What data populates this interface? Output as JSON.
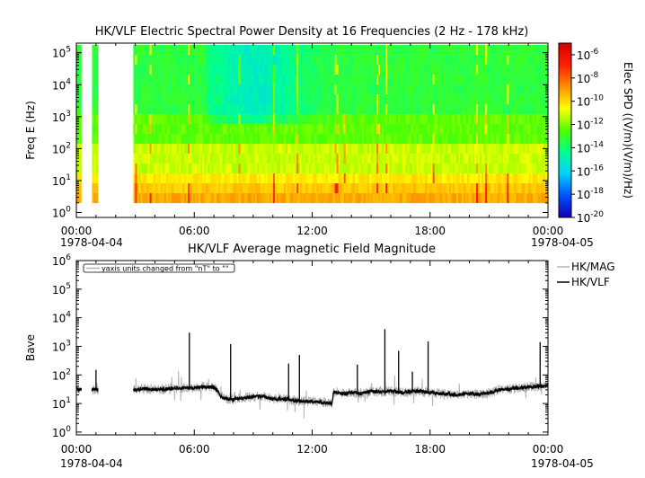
{
  "chart_data": [
    {
      "type": "heatmap",
      "title": "HK/VLF  Electric Spectral Power Density at 16 Frequencies (2 Hz - 178 kHz)",
      "ylabel": "Freq E (Hz)",
      "y_scale": "log",
      "ylim": [
        0.7,
        200000
      ],
      "y_ticks": [
        {
          "base": "10",
          "exp": "0"
        },
        {
          "base": "10",
          "exp": "1"
        },
        {
          "base": "10",
          "exp": "2"
        },
        {
          "base": "10",
          "exp": "3"
        },
        {
          "base": "10",
          "exp": "4"
        },
        {
          "base": "10",
          "exp": "5"
        }
      ],
      "x_ticks": [
        "00:00",
        "06:00",
        "12:00",
        "18:00",
        "00:00"
      ],
      "x_dates": {
        "start": "1978-04-04",
        "end": "1978-04-05"
      },
      "xlim_hours": [
        0,
        24
      ],
      "data_intervals_hours": [
        [
          0.0,
          0.25
        ],
        [
          0.8,
          1.1
        ],
        [
          2.9,
          24.0
        ]
      ],
      "frequency_range_hz": [
        2,
        178000
      ],
      "colorbar": {
        "label": "Elec SPD ((V/m)(V/m)/Hz)",
        "scale": "log",
        "range": [
          1e-20,
          1e-05
        ],
        "ticks": [
          {
            "base": "10",
            "exp": "-6"
          },
          {
            "base": "10",
            "exp": "-8"
          },
          {
            "base": "10",
            "exp": "-10"
          },
          {
            "base": "10",
            "exp": "-12"
          },
          {
            "base": "10",
            "exp": "-14"
          },
          {
            "base": "10",
            "exp": "-16"
          },
          {
            "base": "10",
            "exp": "-18"
          },
          {
            "base": "10",
            "exp": "-20"
          }
        ],
        "colors": [
          "#1200b0",
          "#0050ff",
          "#00d0ff",
          "#00ff90",
          "#50ff00",
          "#ffff00",
          "#ff9000",
          "#ff2000",
          "#d00000"
        ]
      }
    },
    {
      "type": "line",
      "title": "HK/VLF  Average magnetic Field Magnitude",
      "ylabel": "Bave",
      "y_scale": "log",
      "ylim": [
        0.8,
        1000000
      ],
      "y_ticks": [
        {
          "base": "10",
          "exp": "0"
        },
        {
          "base": "10",
          "exp": "1"
        },
        {
          "base": "10",
          "exp": "2"
        },
        {
          "base": "10",
          "exp": "3"
        },
        {
          "base": "10",
          "exp": "4"
        },
        {
          "base": "10",
          "exp": "5"
        },
        {
          "base": "10",
          "exp": "6"
        }
      ],
      "x_ticks": [
        "00:00",
        "06:00",
        "12:00",
        "18:00",
        "00:00"
      ],
      "x_dates": {
        "start": "1978-04-04",
        "end": "1978-04-05"
      },
      "xlim_hours": [
        0,
        24
      ],
      "annotation": "yaxis units changed from \"nT\" to \"\"",
      "legend_position": "right",
      "series": [
        {
          "name": "HK/MAG",
          "color": "#b4b4b4",
          "points": [
            [
              0.0,
              32
            ],
            [
              0.2,
              31
            ],
            [
              0.8,
              30
            ],
            [
              1.0,
              32
            ],
            [
              1.1,
              30
            ],
            [
              2.9,
              31
            ],
            [
              3.5,
              33
            ],
            [
              4.0,
              31
            ],
            [
              4.5,
              32
            ],
            [
              5.0,
              34
            ],
            [
              5.5,
              35
            ],
            [
              6.0,
              36
            ],
            [
              6.5,
              38
            ],
            [
              6.9,
              37
            ],
            [
              7.1,
              33
            ],
            [
              7.3,
              20
            ],
            [
              7.5,
              15
            ],
            [
              8.0,
              14
            ],
            [
              8.5,
              16
            ],
            [
              9.0,
              17
            ],
            [
              9.5,
              18
            ],
            [
              10.0,
              14
            ],
            [
              10.5,
              15
            ],
            [
              11.0,
              13
            ],
            [
              11.5,
              12
            ],
            [
              12.0,
              12
            ],
            [
              12.5,
              11
            ],
            [
              13.0,
              10
            ],
            [
              13.1,
              26
            ],
            [
              13.5,
              22
            ],
            [
              14.0,
              24
            ],
            [
              14.5,
              22
            ],
            [
              15.0,
              27
            ],
            [
              15.5,
              25
            ],
            [
              16.0,
              28
            ],
            [
              16.5,
              24
            ],
            [
              17.0,
              26
            ],
            [
              17.5,
              28
            ],
            [
              18.0,
              24
            ],
            [
              18.5,
              22
            ],
            [
              19.0,
              21
            ],
            [
              19.5,
              20
            ],
            [
              20.0,
              22
            ],
            [
              20.5,
              21
            ],
            [
              21.0,
              23
            ],
            [
              21.5,
              30
            ],
            [
              22.0,
              32
            ],
            [
              22.5,
              35
            ],
            [
              23.0,
              37
            ],
            [
              23.5,
              40
            ],
            [
              24.0,
              42
            ]
          ]
        },
        {
          "name": "HK/VLF",
          "color": "#000000",
          "points": [
            [
              0.0,
              32
            ],
            [
              0.2,
              31
            ],
            [
              0.8,
              30
            ],
            [
              1.0,
              32
            ],
            [
              1.1,
              30
            ],
            [
              2.9,
              31
            ],
            [
              3.5,
              33
            ],
            [
              4.0,
              31
            ],
            [
              4.5,
              32
            ],
            [
              5.0,
              34
            ],
            [
              5.5,
              35
            ],
            [
              6.0,
              36
            ],
            [
              6.5,
              38
            ],
            [
              6.9,
              37
            ],
            [
              7.1,
              33
            ],
            [
              7.3,
              20
            ],
            [
              7.5,
              15
            ],
            [
              8.0,
              14
            ],
            [
              8.5,
              16
            ],
            [
              9.0,
              17
            ],
            [
              9.5,
              18
            ],
            [
              10.0,
              14
            ],
            [
              10.5,
              15
            ],
            [
              11.0,
              13
            ],
            [
              11.5,
              12
            ],
            [
              12.0,
              12
            ],
            [
              12.5,
              11
            ],
            [
              13.0,
              10
            ],
            [
              13.1,
              26
            ],
            [
              13.5,
              22
            ],
            [
              14.0,
              24
            ],
            [
              14.5,
              22
            ],
            [
              15.0,
              27
            ],
            [
              15.5,
              25
            ],
            [
              16.0,
              28
            ],
            [
              16.5,
              24
            ],
            [
              17.0,
              26
            ],
            [
              17.5,
              28
            ],
            [
              18.0,
              24
            ],
            [
              18.5,
              22
            ],
            [
              19.0,
              21
            ],
            [
              19.5,
              20
            ],
            [
              20.0,
              22
            ],
            [
              20.5,
              21
            ],
            [
              21.0,
              23
            ],
            [
              21.5,
              30
            ],
            [
              22.0,
              32
            ],
            [
              22.5,
              35
            ],
            [
              23.0,
              37
            ],
            [
              23.5,
              40
            ],
            [
              24.0,
              42
            ]
          ],
          "spikes": [
            [
              1.0,
              150
            ],
            [
              5.75,
              3000
            ],
            [
              7.85,
              1200
            ],
            [
              10.8,
              250
            ],
            [
              11.35,
              500
            ],
            [
              14.3,
              230
            ],
            [
              15.7,
              4000
            ],
            [
              16.4,
              700
            ],
            [
              17.1,
              130
            ],
            [
              17.9,
              1500
            ],
            [
              23.6,
              1400
            ]
          ]
        }
      ]
    }
  ]
}
